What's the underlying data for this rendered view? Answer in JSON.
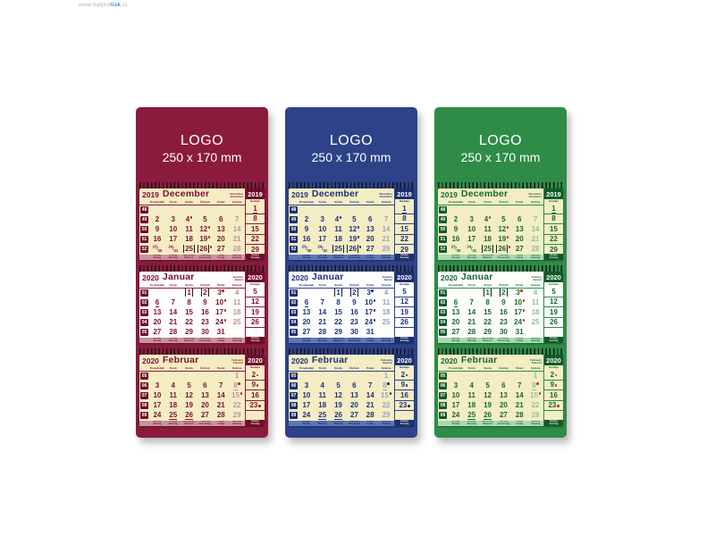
{
  "watermark": {
    "prefix": "www.kalpro",
    "brand": "tisk",
    "suffix": ".si"
  },
  "logo_text": {
    "line1": "LOGO",
    "line2": "250 x 170 mm"
  },
  "day_headers": [
    "Ponedeljek",
    "Torek",
    "Sreda",
    "Četrtek",
    "Petek",
    "Sobota"
  ],
  "sunday_label": "Nedelja",
  "footer_days": [
    [
      "Monday",
      "Montag"
    ],
    [
      "Tuesday",
      "Dienstag"
    ],
    [
      "Wednesday",
      "Mittwoch"
    ],
    [
      "Thursday",
      "Donnerstag"
    ],
    [
      "Friday",
      "Freitag"
    ],
    [
      "Saturday",
      "Samstag"
    ]
  ],
  "footer_sunday": [
    "Sunday",
    "Sonntag"
  ],
  "months": [
    {
      "year": "2019",
      "name": "December",
      "alt": [
        "December",
        "Dezember"
      ],
      "panel": "cream",
      "rows": [
        [
          "48",
          "",
          "",
          "",
          "",
          "",
          "",
          "1u"
        ],
        [
          "49",
          "2",
          "3",
          "4m",
          "5",
          "6",
          "7",
          "8"
        ],
        [
          "50",
          "9",
          "10",
          "11",
          "12m",
          "13",
          "14",
          "15"
        ],
        [
          "51",
          "16",
          "17",
          "18",
          "19m",
          "20",
          "21",
          "22"
        ],
        [
          "52",
          "23/30",
          "24/31",
          "25h",
          "26hm",
          "27",
          "28",
          "29"
        ]
      ]
    },
    {
      "year": "2020",
      "name": "Januar",
      "alt": [
        "January",
        "Januar"
      ],
      "panel": "white",
      "rows": [
        [
          "01",
          "",
          "",
          "1h",
          "2h",
          "3m",
          "4",
          "5"
        ],
        [
          "02",
          "6u",
          "7",
          "8",
          "9",
          "10m",
          "11",
          "12"
        ],
        [
          "03",
          "13",
          "14",
          "15",
          "16",
          "17m",
          "18",
          "19"
        ],
        [
          "04",
          "20",
          "21",
          "22",
          "23",
          "24m",
          "25",
          "26"
        ],
        [
          "05",
          "27",
          "28",
          "29",
          "30",
          "31",
          "",
          ""
        ]
      ]
    },
    {
      "year": "2020",
      "name": "Februar",
      "alt": [
        "February",
        "Februar"
      ],
      "panel": "cream",
      "rows": [
        [
          "05",
          "",
          "",
          "",
          "",
          "",
          "1",
          "2m"
        ],
        [
          "06",
          "3",
          "4",
          "5",
          "6",
          "7",
          "8um",
          "9m"
        ],
        [
          "07",
          "10",
          "11",
          "12",
          "13",
          "14",
          "15m",
          "16"
        ],
        [
          "08",
          "17",
          "18",
          "19",
          "20",
          "21",
          "22",
          "23m"
        ],
        [
          "09",
          "24",
          "25u",
          "26u",
          "27",
          "28",
          "29",
          ""
        ]
      ]
    }
  ],
  "calendars": [
    {
      "id": "red",
      "colors": {
        "backing": "#8b1b3c",
        "ink": "#7c1030",
        "sat": "#bf9499",
        "strip": "#c9929c",
        "stripText": "#7c1030",
        "wkbox": "#6d0d2a",
        "moon": "#a82a2a"
      }
    },
    {
      "id": "blue",
      "colors": {
        "backing": "#2d4289",
        "ink": "#1e3178",
        "sat": "#98a3c4",
        "strip": "#5d76b8",
        "stripText": "#122563",
        "wkbox": "#1d2f6e",
        "moon": "#1e3178"
      }
    },
    {
      "id": "green",
      "colors": {
        "backing": "#2e8c47",
        "ink": "#156831",
        "sat": "#8cc59c",
        "strip": "#a7d9b1",
        "stripText": "#156831",
        "wkbox": "#115a29",
        "moon": "#c43326"
      }
    }
  ]
}
